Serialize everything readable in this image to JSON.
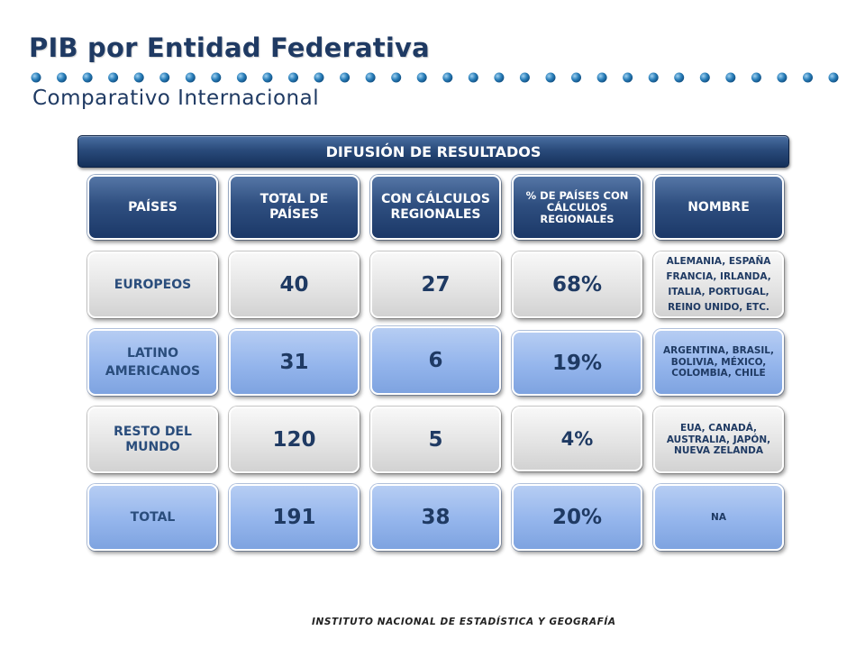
{
  "page": {
    "title": "PIB por Entidad Federativa",
    "subtitle": "Comparativo Internacional"
  },
  "banner": {
    "label": "DIFUSIÓN DE RESULTADOS"
  },
  "table": {
    "headers": [
      "PAÍSES",
      "TOTAL DE PAÍSES",
      "CON CÁLCULOS REGIONALES",
      "% DE PAÍSES CON CÁLCULOS REGIONALES",
      "NOMBRE"
    ],
    "rows": [
      {
        "label": "EUROPEOS",
        "total": "40",
        "regionales": "27",
        "pct": "68%",
        "nombre": "ALEMANIA, ESPAÑA FRANCIA, IRLANDA, ITALIA, PORTUGAL, REINO UNIDO, ETC."
      },
      {
        "label": "LATINO AMERICANOS",
        "total": "31",
        "regionales": "6",
        "pct": "19%",
        "nombre": "ARGENTINA, BRASIL, BOLIVIA, MÉXICO, COLOMBIA, CHILE"
      },
      {
        "label": "RESTO DEL MUNDO",
        "total": "120",
        "regionales": "5",
        "pct": "4%",
        "nombre": "EUA, CANADÁ, AUSTRALIA, JAPÓN, NUEVA ZELANDA"
      },
      {
        "label": "TOTAL",
        "total": "191",
        "regionales": "38",
        "pct": "20%",
        "nombre": "NA"
      }
    ]
  },
  "footer": {
    "text": "INSTITUTO NACIONAL DE ESTADÍSTICA Y GEOGRAFÍA"
  },
  "colors": {
    "navy": "#1f3a63",
    "header_blue": "#2f4f80",
    "cell_blue": "#94b5ec",
    "cell_gray": "#e4e4e4",
    "dot_blue": "#1e6fa8"
  }
}
